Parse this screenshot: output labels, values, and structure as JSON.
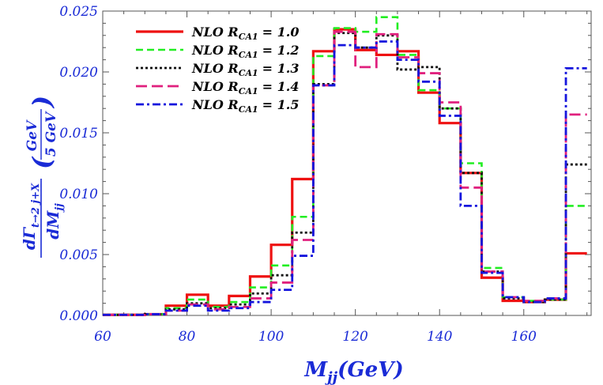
{
  "chart_data": {
    "type": "line",
    "style": "step-histogram",
    "xlabel_main": "M",
    "xlabel_sub": "jj",
    "xlabel_unit": "(GeV)",
    "ylabel": {
      "numerator_prefix": "dΓ",
      "numerator_sub": "t→2 j+X",
      "denominator_prefix": "dM",
      "denominator_sub": "jj",
      "paren_num": "GeV",
      "paren_den": "5 GeV"
    },
    "xlim": [
      60,
      176
    ],
    "ylim": [
      0,
      0.025
    ],
    "xticks": [
      60,
      80,
      100,
      120,
      140,
      160
    ],
    "yticks": [
      "0.000",
      "0.005",
      "0.010",
      "0.015",
      "0.020",
      "0.025"
    ],
    "bin_edges": [
      60,
      65,
      70,
      75,
      80,
      85,
      90,
      95,
      100,
      105,
      110,
      115,
      120,
      125,
      130,
      135,
      140,
      145,
      150,
      155,
      160,
      165,
      170,
      175
    ],
    "legend_position": "top-left",
    "series": [
      {
        "legend_prefix": "NLO R",
        "legend_sub": "CA1",
        "legend_value": "= 1.0",
        "color": "#ee1111",
        "dash": "",
        "width": 3.2,
        "values": [
          5e-05,
          5e-05,
          0.0001,
          0.0008,
          0.0017,
          0.0008,
          0.0016,
          0.0032,
          0.0058,
          0.0112,
          0.0217,
          0.0235,
          0.0218,
          0.0214,
          0.0217,
          0.0183,
          0.0158,
          0.0117,
          0.0031,
          0.0012,
          0.0011,
          0.0013,
          0.0051
        ]
      },
      {
        "legend_prefix": "NLO R",
        "legend_sub": "CA1",
        "legend_value": "= 1.2",
        "color": "#22ee22",
        "dash": "9,5",
        "width": 2.6,
        "values": [
          5e-05,
          5e-05,
          0.0001,
          0.0006,
          0.0013,
          0.0007,
          0.0011,
          0.0023,
          0.0041,
          0.0081,
          0.0213,
          0.0236,
          0.0233,
          0.0245,
          0.0214,
          0.0185,
          0.017,
          0.0125,
          0.0039,
          0.0015,
          0.0012,
          0.0013,
          0.009
        ]
      },
      {
        "legend_prefix": "NLO R",
        "legend_sub": "CA1",
        "legend_value": "= 1.3",
        "color": "#111111",
        "dash": "3,3",
        "width": 2.8,
        "values": [
          5e-05,
          5e-05,
          0.0001,
          0.0005,
          0.001,
          0.0006,
          0.0009,
          0.0018,
          0.0033,
          0.0068,
          0.019,
          0.0232,
          0.022,
          0.023,
          0.0202,
          0.0204,
          0.017,
          0.0117,
          0.0036,
          0.0014,
          0.0011,
          0.0013,
          0.0124
        ]
      },
      {
        "legend_prefix": "NLO R",
        "legend_sub": "CA1",
        "legend_value": "= 1.4",
        "color": "#e0207e",
        "dash": "14,6",
        "width": 2.8,
        "values": [
          5e-05,
          5e-05,
          0.0001,
          0.0004,
          0.0009,
          0.0005,
          0.0007,
          0.0014,
          0.0027,
          0.0062,
          0.0189,
          0.0233,
          0.0204,
          0.0231,
          0.0212,
          0.0199,
          0.0175,
          0.0105,
          0.0036,
          0.0015,
          0.0012,
          0.0014,
          0.0165
        ]
      },
      {
        "legend_prefix": "NLO R",
        "legend_sub": "CA1",
        "legend_value": "= 1.5",
        "color": "#1515dd",
        "dash": "10,4,3,4",
        "width": 2.8,
        "values": [
          5e-05,
          5e-05,
          0.0001,
          0.0004,
          0.0008,
          0.0004,
          0.0006,
          0.0011,
          0.0021,
          0.0049,
          0.0189,
          0.0222,
          0.022,
          0.0225,
          0.021,
          0.0192,
          0.0164,
          0.009,
          0.0035,
          0.0015,
          0.0011,
          0.0014,
          0.0203
        ]
      }
    ]
  }
}
